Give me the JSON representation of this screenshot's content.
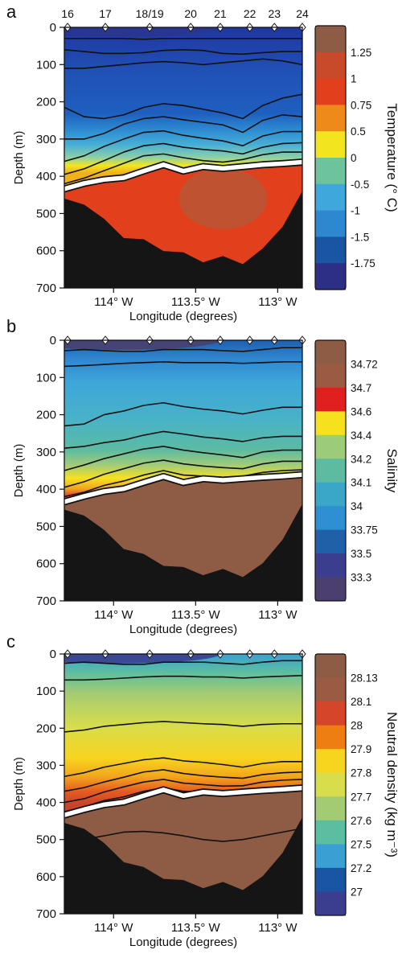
{
  "figure": {
    "stations": [
      "16",
      "17",
      "18/19",
      "20",
      "21",
      "22",
      "23",
      "24"
    ],
    "station_lon": [
      -114.28,
      -114.05,
      -113.78,
      -113.53,
      -113.35,
      -113.17,
      -113.02,
      -112.85
    ]
  },
  "chart_data": [
    {
      "type": "heatmap",
      "panel": "a",
      "xlabel": "Longitude (degrees)",
      "ylabel": "Depth (m)",
      "xlim": [
        -114.3,
        -112.85
      ],
      "ylim": [
        700,
        0
      ],
      "xticks": [
        {
          "v": -114.0,
          "label": "114° W"
        },
        {
          "v": -113.5,
          "label": "113.5° W"
        },
        {
          "v": -113.0,
          "label": "113° W"
        }
      ],
      "yticks": [
        0,
        100,
        200,
        300,
        400,
        500,
        600,
        700
      ],
      "colorbar_title": "Temperature (° C)",
      "colorbar_labels": [
        "1.25",
        "1",
        "0.75",
        "0.5",
        "0",
        "-0.5",
        "-1",
        "-1.5",
        "-1.75"
      ],
      "colorbar_colors": [
        "#8e5b45",
        "#c9492b",
        "#e23f1d",
        "#ee8a1a",
        "#f2e520",
        "#6cc39c",
        "#3fa7dc",
        "#2d88cf",
        "#1a55a3",
        "#2d2f86"
      ],
      "interface_depth": [
        440,
        425,
        415,
        410,
        392,
        375,
        392,
        380,
        385,
        380,
        375,
        372,
        368
      ],
      "contours": [
        {
          "v": [
            30,
            30,
            30,
            30,
            32,
            30,
            30,
            30,
            30,
            30,
            30,
            30,
            30
          ]
        },
        {
          "v": [
            60,
            65,
            70,
            70,
            68,
            62,
            60,
            62,
            70,
            72,
            68,
            65,
            65
          ]
        },
        {
          "v": [
            110,
            110,
            105,
            100,
            95,
            92,
            95,
            100,
            95,
            90,
            85,
            90,
            100
          ]
        },
        {
          "v": [
            215,
            240,
            245,
            235,
            215,
            205,
            210,
            220,
            230,
            245,
            210,
            190,
            180
          ]
        },
        {
          "v": [
            300,
            300,
            285,
            260,
            245,
            240,
            248,
            255,
            262,
            282,
            250,
            235,
            240
          ]
        },
        {
          "v": [
            360,
            345,
            320,
            300,
            282,
            278,
            290,
            298,
            305,
            318,
            292,
            280,
            280
          ]
        },
        {
          "v": [
            395,
            380,
            358,
            335,
            318,
            312,
            322,
            328,
            332,
            340,
            322,
            312,
            310
          ]
        },
        {
          "v": [
            420,
            405,
            385,
            365,
            345,
            340,
            350,
            358,
            362,
            355,
            342,
            335,
            335
          ]
        },
        {
          "v": [
            435,
            420,
            405,
            398,
            385,
            368,
            380,
            375,
            375,
            370,
            368,
            365,
            362
          ]
        }
      ],
      "bathymetry": [
        460,
        470,
        520,
        560,
        575,
        595,
        610,
        625,
        620,
        630,
        600,
        530,
        440
      ]
    },
    {
      "type": "heatmap",
      "panel": "b",
      "xlabel": "Longitude (degrees)",
      "ylabel": "Depth (m)",
      "xlim": [
        -114.3,
        -112.85
      ],
      "ylim": [
        700,
        0
      ],
      "xticks": [
        {
          "v": -114.0,
          "label": "114° W"
        },
        {
          "v": -113.5,
          "label": "113.5° W"
        },
        {
          "v": -113.0,
          "label": "113° W"
        }
      ],
      "yticks": [
        0,
        100,
        200,
        300,
        400,
        500,
        600,
        700
      ],
      "colorbar_title": "Salinity",
      "colorbar_labels": [
        "34.72",
        "34.7",
        "34.6",
        "34.4",
        "34.2",
        "34.1",
        "34",
        "33.75",
        "33.5",
        "33.3"
      ],
      "colorbar_colors": [
        "#8e5b45",
        "#9a5b42",
        "#e01f1f",
        "#f7e11e",
        "#9ccc7a",
        "#5dbba1",
        "#3aa6c8",
        "#2f8fd3",
        "#1f60a8",
        "#3b3e8f",
        "#4a3f6e"
      ],
      "interface_depth": [
        440,
        425,
        412,
        405,
        388,
        372,
        388,
        378,
        382,
        378,
        374,
        371,
        367
      ],
      "contours": [
        {
          "v": [
            28,
            25,
            28,
            30,
            30,
            25,
            25,
            25,
            28,
            30,
            25,
            20,
            20
          ]
        },
        {
          "v": [
            70,
            68,
            65,
            62,
            60,
            58,
            60,
            60,
            60,
            62,
            60,
            58,
            58
          ]
        },
        {
          "v": [
            230,
            225,
            200,
            190,
            175,
            168,
            178,
            185,
            190,
            198,
            188,
            180,
            180
          ]
        },
        {
          "v": [
            290,
            285,
            275,
            268,
            255,
            245,
            252,
            260,
            265,
            272,
            262,
            258,
            258
          ]
        },
        {
          "v": [
            350,
            335,
            318,
            305,
            292,
            285,
            295,
            302,
            308,
            315,
            300,
            295,
            295
          ]
        },
        {
          "v": [
            395,
            380,
            360,
            345,
            330,
            322,
            332,
            338,
            342,
            345,
            332,
            325,
            325
          ]
        },
        {
          "v": [
            420,
            408,
            390,
            378,
            362,
            350,
            362,
            365,
            368,
            365,
            355,
            350,
            348
          ]
        }
      ],
      "bathymetry": [
        455,
        465,
        515,
        555,
        580,
        600,
        615,
        625,
        620,
        630,
        605,
        530,
        440
      ]
    },
    {
      "type": "heatmap",
      "panel": "c",
      "xlabel": "Longitude (degrees)",
      "ylabel": "Depth (m)",
      "xlim": [
        -114.3,
        -112.85
      ],
      "ylim": [
        700,
        0
      ],
      "xticks": [
        {
          "v": -114.0,
          "label": "114° W"
        },
        {
          "v": -113.5,
          "label": "113.5° W"
        },
        {
          "v": -113.0,
          "label": "113° W"
        }
      ],
      "yticks": [
        0,
        100,
        200,
        300,
        400,
        500,
        600,
        700
      ],
      "colorbar_title": "Neutral density (kg m⁻³)",
      "colorbar_labels": [
        "28.13",
        "28.1",
        "28",
        "27.9",
        "27.8",
        "27.7",
        "27.6",
        "27.5",
        "27.2",
        "27"
      ],
      "colorbar_colors": [
        "#8e5b45",
        "#9a5b42",
        "#d5452a",
        "#ee7d12",
        "#f7d41e",
        "#d8dd4b",
        "#a3cb73",
        "#5cbea0",
        "#3aa0d4",
        "#1a55a3",
        "#3b3e8f"
      ],
      "interface_depth": [
        440,
        425,
        412,
        405,
        388,
        372,
        388,
        378,
        382,
        378,
        374,
        371,
        367
      ],
      "contours": [
        {
          "v": [
            25,
            22,
            25,
            28,
            28,
            22,
            22,
            22,
            25,
            28,
            22,
            18,
            18
          ]
        },
        {
          "v": [
            70,
            70,
            68,
            65,
            62,
            60,
            60,
            62,
            62,
            65,
            62,
            60,
            58
          ]
        },
        {
          "v": [
            210,
            205,
            195,
            190,
            185,
            182,
            185,
            188,
            190,
            195,
            190,
            188,
            188
          ]
        },
        {
          "v": [
            330,
            320,
            305,
            295,
            285,
            280,
            288,
            292,
            298,
            305,
            295,
            290,
            290
          ]
        },
        {
          "v": [
            370,
            360,
            345,
            332,
            318,
            312,
            322,
            328,
            332,
            335,
            325,
            320,
            318
          ]
        },
        {
          "v": [
            400,
            390,
            372,
            358,
            345,
            338,
            348,
            352,
            356,
            355,
            345,
            340,
            338
          ]
        },
        {
          "v": [
            425,
            412,
            395,
            385,
            370,
            360,
            370,
            372,
            375,
            372,
            364,
            360,
            358
          ]
        },
        {
          "v": [
            520,
            500,
            490,
            480,
            478,
            482,
            490,
            500,
            505,
            500,
            490,
            480,
            470
          ]
        }
      ],
      "bathymetry": [
        455,
        465,
        515,
        555,
        580,
        600,
        615,
        625,
        620,
        630,
        605,
        530,
        440
      ]
    }
  ]
}
